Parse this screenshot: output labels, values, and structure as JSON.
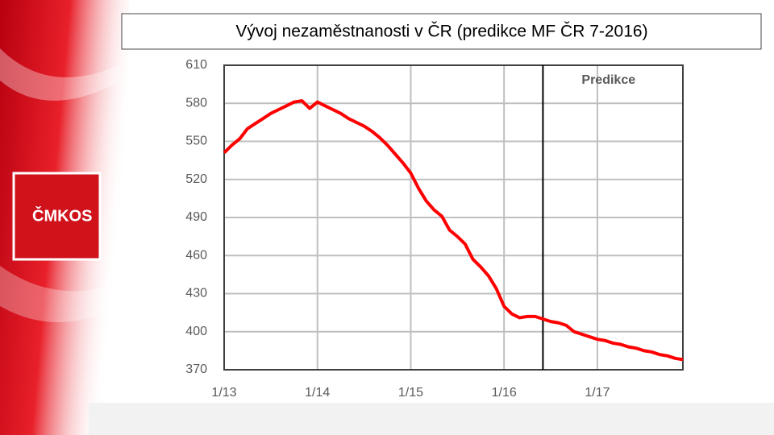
{
  "logo": "ČMKOS",
  "chart_data": {
    "type": "line",
    "title": "Vývoj nezaměstnanosti v ČR (predikce MF ČR 7-2016)",
    "x": [
      0,
      1,
      2,
      3,
      4,
      5,
      6,
      7,
      8,
      9,
      10,
      11,
      12,
      13,
      14,
      15,
      16,
      17,
      18,
      19,
      20,
      21,
      22,
      23,
      24,
      25,
      26,
      27,
      28,
      29,
      30,
      31,
      32,
      33,
      34,
      35,
      36,
      37,
      38,
      39,
      40,
      41,
      42,
      43,
      44,
      45,
      46,
      47,
      48,
      49,
      50,
      51,
      52,
      53,
      54,
      55,
      56,
      57,
      58,
      59
    ],
    "values": [
      541,
      547,
      552,
      560,
      564,
      568,
      572,
      575,
      578,
      581,
      582,
      576,
      581,
      578,
      575,
      572,
      568,
      565,
      562,
      558,
      553,
      547,
      540,
      533,
      525,
      513,
      503,
      496,
      491,
      480,
      475,
      469,
      457,
      451,
      444,
      434,
      420,
      414,
      411,
      412,
      412,
      410,
      408,
      407,
      405,
      400,
      398,
      396,
      394,
      393,
      391,
      390,
      388,
      387,
      385,
      384,
      382,
      381,
      379,
      378
    ],
    "color": "#ff0000",
    "xlim": [
      0,
      59
    ],
    "xticks": [
      {
        "value": 0,
        "label": "1/13"
      },
      {
        "value": 12,
        "label": "1/14"
      },
      {
        "value": 24,
        "label": "1/15"
      },
      {
        "value": 36,
        "label": "1/16"
      },
      {
        "value": 48,
        "label": "1/17"
      }
    ],
    "ylim": [
      370,
      610
    ],
    "yticks": [
      370,
      400,
      430,
      460,
      490,
      520,
      550,
      580,
      610
    ],
    "grid": true,
    "annotation": {
      "text": "Predikce",
      "x": 41
    }
  }
}
